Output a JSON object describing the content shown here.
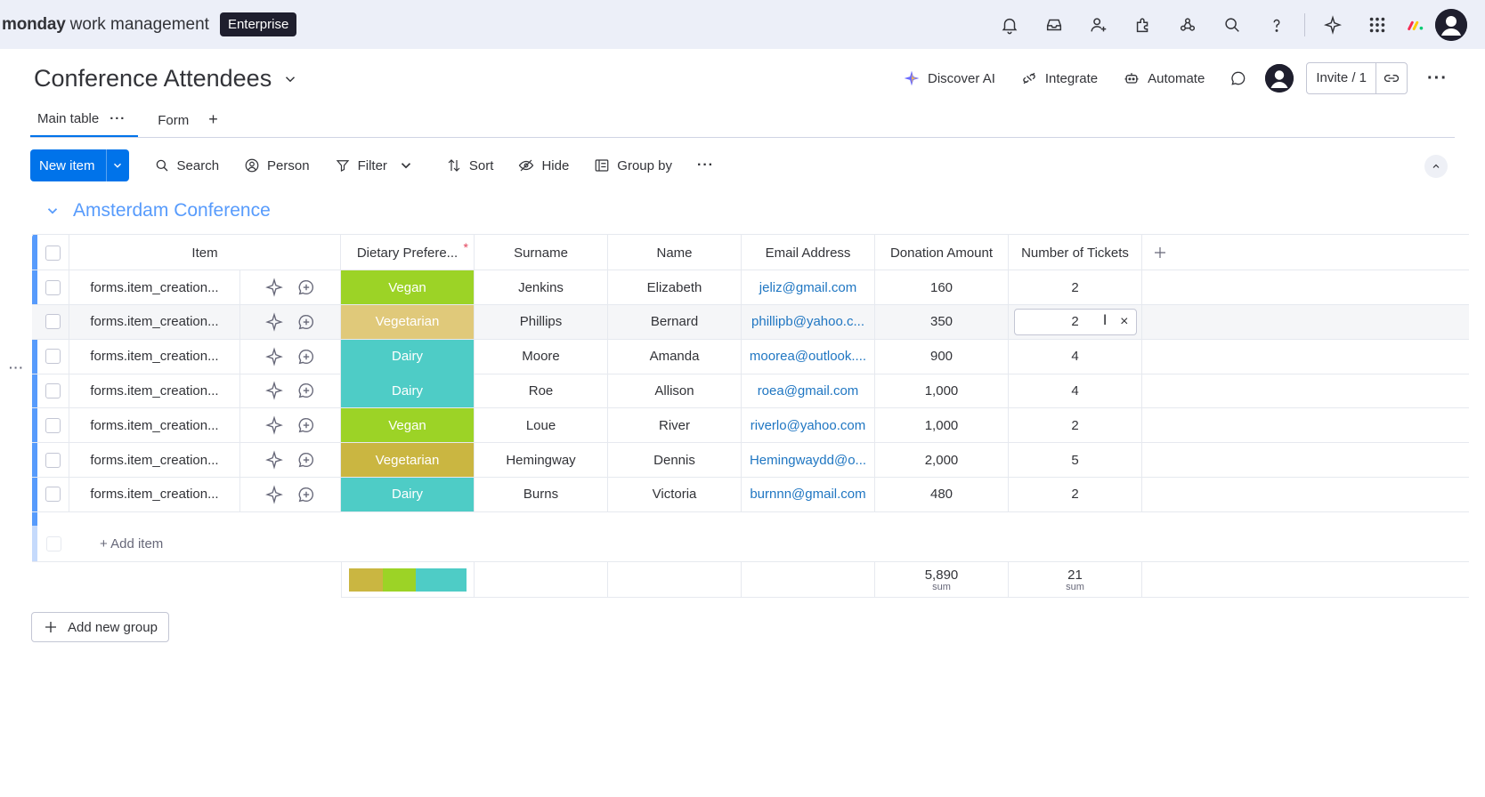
{
  "topbar": {
    "brand_bold": "monday",
    "brand_light": "work management",
    "plan_badge": "Enterprise",
    "icons": [
      "bell-icon",
      "inbox-icon",
      "invite-members-icon",
      "apps-icon",
      "integrations-icon",
      "search-icon",
      "help-icon",
      "ai-sparkle-icon",
      "app-switcher-icon",
      "monday-logo-icon",
      "user-avatar"
    ]
  },
  "board": {
    "title": "Conference Attendees",
    "actions": {
      "discover_ai": "Discover AI",
      "integrate": "Integrate",
      "automate": "Automate",
      "invite": "Invite / 1"
    }
  },
  "tabs": [
    {
      "label": "Main table",
      "active": true
    },
    {
      "label": "Form",
      "active": false
    }
  ],
  "tab_add": "+",
  "toolbar": {
    "new_item": "New item",
    "search": "Search",
    "person": "Person",
    "filter": "Filter",
    "sort": "Sort",
    "hide": "Hide",
    "group_by": "Group by"
  },
  "group": {
    "title": "Amsterdam Conference",
    "color": "#579bfc",
    "columns": [
      "Item",
      "Dietary Prefere...",
      "Surname",
      "Name",
      "Email Address",
      "Donation Amount",
      "Number of Tickets"
    ],
    "rows": [
      {
        "item": "forms.item_creation...",
        "diet": "Vegan",
        "diet_color": "#9cd326",
        "surname": "Jenkins",
        "name": "Elizabeth",
        "email": "jeliz@gmail.com",
        "donation": "160",
        "tickets": "2"
      },
      {
        "item": "forms.item_creation...",
        "diet": "Vegetarian",
        "diet_color": "#e0c97a",
        "surname": "Phillips",
        "name": "Bernard",
        "email": "phillipb@yahoo.c...",
        "donation": "350",
        "tickets": "2"
      },
      {
        "item": "forms.item_creation...",
        "diet": "Dairy",
        "diet_color": "#4eccc6",
        "surname": "Moore",
        "name": "Amanda",
        "email": "moorea@outlook....",
        "donation": "900",
        "tickets": "4"
      },
      {
        "item": "forms.item_creation...",
        "diet": "Dairy",
        "diet_color": "#4eccc6",
        "surname": "Roe",
        "name": "Allison",
        "email": "roea@gmail.com",
        "donation": "1,000",
        "tickets": "4"
      },
      {
        "item": "forms.item_creation...",
        "diet": "Vegan",
        "diet_color": "#9cd326",
        "surname": "Loue",
        "name": "River",
        "email": "riverlo@yahoo.com",
        "donation": "1,000",
        "tickets": "2"
      },
      {
        "item": "forms.item_creation...",
        "diet": "Vegetarian",
        "diet_color": "#cab641",
        "surname": "Hemingway",
        "name": "Dennis",
        "email": "Hemingwaydd@o...",
        "donation": "2,000",
        "tickets": "5"
      },
      {
        "item": "forms.item_creation...",
        "diet": "Dairy",
        "diet_color": "#4eccc6",
        "surname": "Burns",
        "name": "Victoria",
        "email": "burnnn@gmail.com",
        "donation": "480",
        "tickets": "2"
      }
    ],
    "add_item": "+ Add item",
    "summary": {
      "diet_distribution": [
        {
          "label": "Vegetarian",
          "fraction": 0.2857,
          "color": "#cab641"
        },
        {
          "label": "Vegan",
          "fraction": 0.2857,
          "color": "#9cd326"
        },
        {
          "label": "Dairy",
          "fraction": 0.4286,
          "color": "#4eccc6"
        }
      ],
      "donation_sum": "5,890",
      "tickets_sum": "21",
      "sum_label": "sum"
    }
  },
  "add_new_group": "Add new group"
}
